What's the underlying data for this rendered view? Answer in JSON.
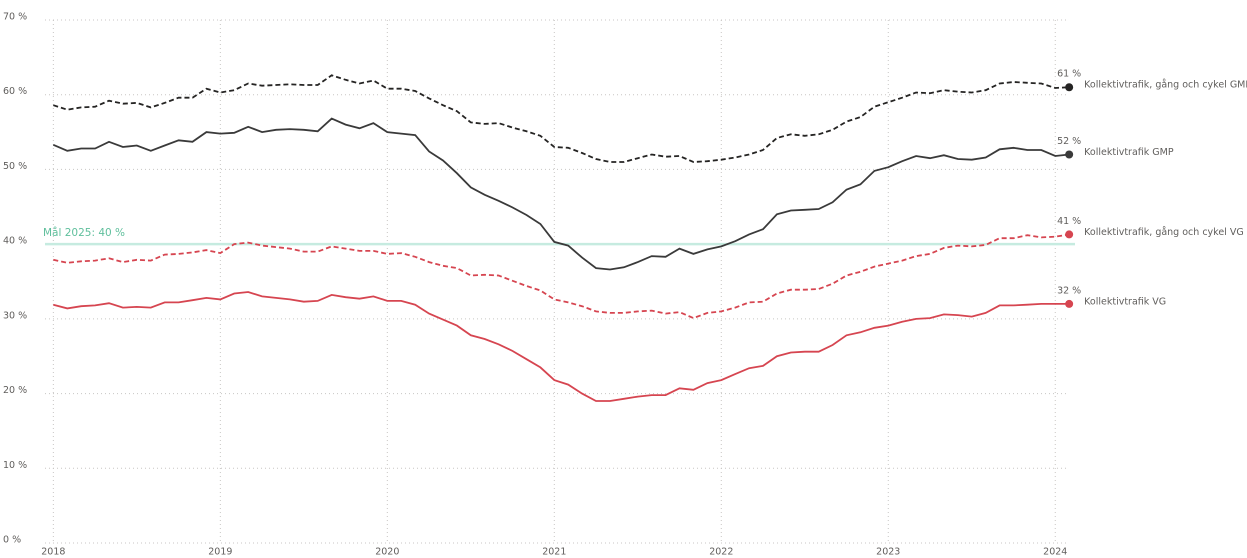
{
  "chart_data": {
    "type": "line",
    "x": [
      2018,
      2018.0833,
      2018.1667,
      2018.25,
      2018.3333,
      2018.4167,
      2018.5,
      2018.5833,
      2018.6667,
      2018.75,
      2018.8333,
      2018.9167,
      2019,
      2019.0833,
      2019.1667,
      2019.25,
      2019.3333,
      2019.4167,
      2019.5,
      2019.5833,
      2019.6667,
      2019.75,
      2019.8333,
      2019.9167,
      2020,
      2020.0833,
      2020.1667,
      2020.25,
      2020.3333,
      2020.4167,
      2020.5,
      2020.5833,
      2020.6667,
      2020.75,
      2020.8333,
      2020.9167,
      2021,
      2021.0833,
      2021.1667,
      2021.25,
      2021.3333,
      2021.4167,
      2021.5,
      2021.5833,
      2021.6667,
      2021.75,
      2021.8333,
      2021.9167,
      2022,
      2022.0833,
      2022.1667,
      2022.25,
      2022.3333,
      2022.4167,
      2022.5,
      2022.5833,
      2022.6667,
      2022.75,
      2022.8333,
      2022.9167,
      2023,
      2023.0833,
      2023.1667,
      2023.25,
      2023.3333,
      2023.4167,
      2023.5,
      2023.5833,
      2023.6667,
      2023.75,
      2023.8333,
      2023.9167,
      2024,
      2024.0833
    ],
    "series": [
      {
        "name": "Kollektivtrafik, gång och cykel GMP",
        "color": "#252423",
        "dashed": true,
        "end_label": "61 %",
        "values": [
          58.6,
          58.0,
          58.3,
          58.4,
          59.2,
          58.8,
          58.9,
          58.3,
          58.9,
          59.6,
          59.6,
          60.8,
          60.3,
          60.6,
          61.5,
          61.2,
          61.3,
          61.4,
          61.3,
          61.3,
          62.6,
          62.0,
          61.5,
          61.9,
          60.8,
          60.8,
          60.5,
          59.5,
          58.6,
          57.8,
          56.3,
          56.1,
          56.2,
          55.6,
          55.1,
          54.5,
          53.0,
          52.9,
          52.2,
          51.4,
          51.0,
          51.0,
          51.5,
          52.0,
          51.7,
          51.8,
          51.0,
          51.1,
          51.3,
          51.6,
          52.0,
          52.6,
          54.2,
          54.7,
          54.5,
          54.7,
          55.3,
          56.4,
          57.0,
          58.4,
          59.0,
          59.6,
          60.3,
          60.2,
          60.6,
          60.4,
          60.3,
          60.6,
          61.5,
          61.7,
          61.6,
          61.5,
          60.9,
          61.0
        ]
      },
      {
        "name": "Kollektivtrafik GMP",
        "color": "#3a3a3a",
        "dashed": false,
        "end_label": "52 %",
        "values": [
          53.3,
          52.5,
          52.8,
          52.8,
          53.7,
          53.0,
          53.2,
          52.5,
          53.2,
          53.9,
          53.7,
          55.0,
          54.8,
          54.9,
          55.7,
          55.0,
          55.3,
          55.4,
          55.3,
          55.1,
          56.8,
          56.0,
          55.5,
          56.2,
          55.0,
          54.8,
          54.6,
          52.4,
          51.2,
          49.5,
          47.6,
          46.6,
          45.8,
          44.9,
          43.9,
          42.7,
          40.3,
          39.8,
          38.2,
          36.8,
          36.6,
          36.9,
          37.6,
          38.4,
          38.3,
          39.4,
          38.7,
          39.3,
          39.7,
          40.4,
          41.3,
          42.0,
          44.0,
          44.5,
          44.6,
          44.7,
          45.6,
          47.3,
          48.0,
          49.8,
          50.3,
          51.1,
          51.8,
          51.5,
          51.9,
          51.4,
          51.3,
          51.6,
          52.7,
          52.9,
          52.6,
          52.6,
          51.8,
          52.0
        ]
      },
      {
        "name": "Kollektivtrafik, gång och cykel VG",
        "color": "#d64550",
        "dashed": true,
        "end_label": "41 %",
        "values": [
          37.9,
          37.5,
          37.7,
          37.8,
          38.1,
          37.6,
          37.9,
          37.8,
          38.6,
          38.7,
          38.9,
          39.2,
          38.8,
          40.0,
          40.2,
          39.8,
          39.6,
          39.4,
          39.0,
          39.0,
          39.7,
          39.4,
          39.1,
          39.1,
          38.7,
          38.8,
          38.3,
          37.6,
          37.1,
          36.8,
          35.8,
          35.9,
          35.8,
          35.1,
          34.4,
          33.8,
          32.6,
          32.2,
          31.7,
          31.0,
          30.8,
          30.8,
          31.0,
          31.1,
          30.7,
          30.9,
          30.1,
          30.8,
          31.0,
          31.5,
          32.2,
          32.3,
          33.4,
          33.9,
          33.9,
          34.0,
          34.7,
          35.8,
          36.3,
          37.0,
          37.4,
          37.8,
          38.4,
          38.7,
          39.5,
          39.8,
          39.7,
          39.9,
          40.8,
          40.8,
          41.2,
          40.9,
          41.0,
          41.3
        ]
      },
      {
        "name": "Kollektivtrafik VG",
        "color": "#d64550",
        "dashed": false,
        "end_label": "32 %",
        "values": [
          31.9,
          31.4,
          31.7,
          31.8,
          32.1,
          31.5,
          31.6,
          31.5,
          32.2,
          32.2,
          32.5,
          32.8,
          32.6,
          33.4,
          33.6,
          33.0,
          32.8,
          32.6,
          32.3,
          32.4,
          33.2,
          32.9,
          32.7,
          33.0,
          32.4,
          32.4,
          31.9,
          30.7,
          29.9,
          29.1,
          27.8,
          27.3,
          26.6,
          25.7,
          24.6,
          23.5,
          21.8,
          21.2,
          20.0,
          19.0,
          19.0,
          19.3,
          19.6,
          19.8,
          19.8,
          20.7,
          20.5,
          21.4,
          21.8,
          22.6,
          23.4,
          23.7,
          25.0,
          25.5,
          25.6,
          25.6,
          26.5,
          27.8,
          28.2,
          28.8,
          29.1,
          29.6,
          30.0,
          30.1,
          30.6,
          30.5,
          30.3,
          30.8,
          31.8,
          31.8,
          31.9,
          32.0,
          32.0,
          32.0
        ]
      }
    ],
    "target": {
      "value": 40,
      "label": "Mål 2025: 40 %",
      "color": "#5fbf9c"
    },
    "xlim": [
      2017.95,
      2024.25
    ],
    "xticks": [
      2018,
      2019,
      2020,
      2021,
      2022,
      2023,
      2024
    ],
    "ylim": [
      0,
      70
    ],
    "yticks": [
      {
        "value": 0,
        "label": "0 %"
      },
      {
        "value": 10,
        "label": "10 %"
      },
      {
        "value": 20,
        "label": "20 %"
      },
      {
        "value": 30,
        "label": "30 %"
      },
      {
        "value": 40,
        "label": "40 %"
      },
      {
        "value": 50,
        "label": "50 %"
      },
      {
        "value": 60,
        "label": "60 %"
      },
      {
        "value": 70,
        "label": "70 %"
      }
    ],
    "grid": true
  }
}
